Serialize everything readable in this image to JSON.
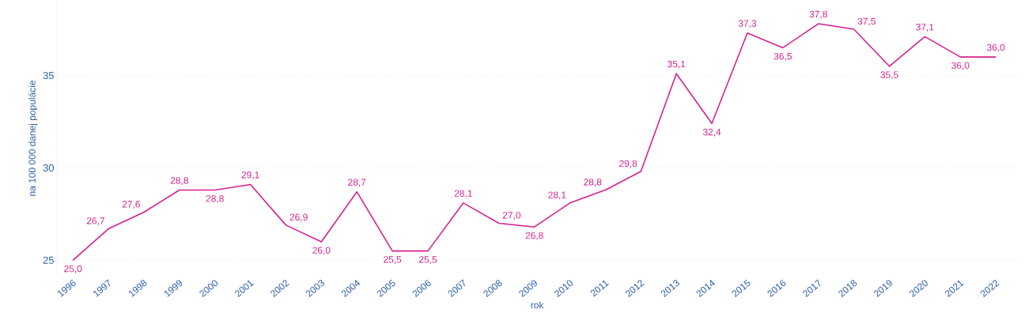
{
  "chart_data": {
    "type": "line",
    "xlabel": "rok",
    "ylabel": "na 100 000 danej populácie",
    "categories": [
      "1996",
      "1997",
      "1998",
      "1999",
      "2000",
      "2001",
      "2002",
      "2003",
      "2004",
      "2005",
      "2006",
      "2007",
      "2008",
      "2009",
      "2010",
      "2011",
      "2012",
      "2013",
      "2014",
      "2015",
      "2016",
      "2017",
      "2018",
      "2019",
      "2020",
      "2021",
      "2022"
    ],
    "values": [
      25.0,
      26.7,
      27.6,
      28.8,
      28.8,
      29.1,
      26.9,
      26.0,
      28.7,
      25.5,
      25.5,
      28.1,
      27.0,
      26.8,
      28.1,
      28.8,
      29.8,
      35.1,
      32.4,
      37.3,
      36.5,
      37.8,
      37.5,
      35.5,
      37.1,
      36.0,
      36.0
    ],
    "value_labels": [
      "25,0",
      "26,7",
      "27,6",
      "28,8",
      "28,8",
      "29,1",
      "26,9",
      "26,0",
      "28,7",
      "25,5",
      "25,5",
      "28,1",
      "27,0",
      "26,8",
      "28,1",
      "28,8",
      "29,8",
      "35,1",
      "32,4",
      "37,3",
      "36,5",
      "37,8",
      "37,5",
      "35,5",
      "37,1",
      "36,0",
      "36,0"
    ],
    "color": "#d6218f",
    "ylim": [
      24.2,
      39
    ],
    "yticks": [
      25,
      30,
      35
    ],
    "grid": "y",
    "marker": "none",
    "line_style": "solid"
  }
}
